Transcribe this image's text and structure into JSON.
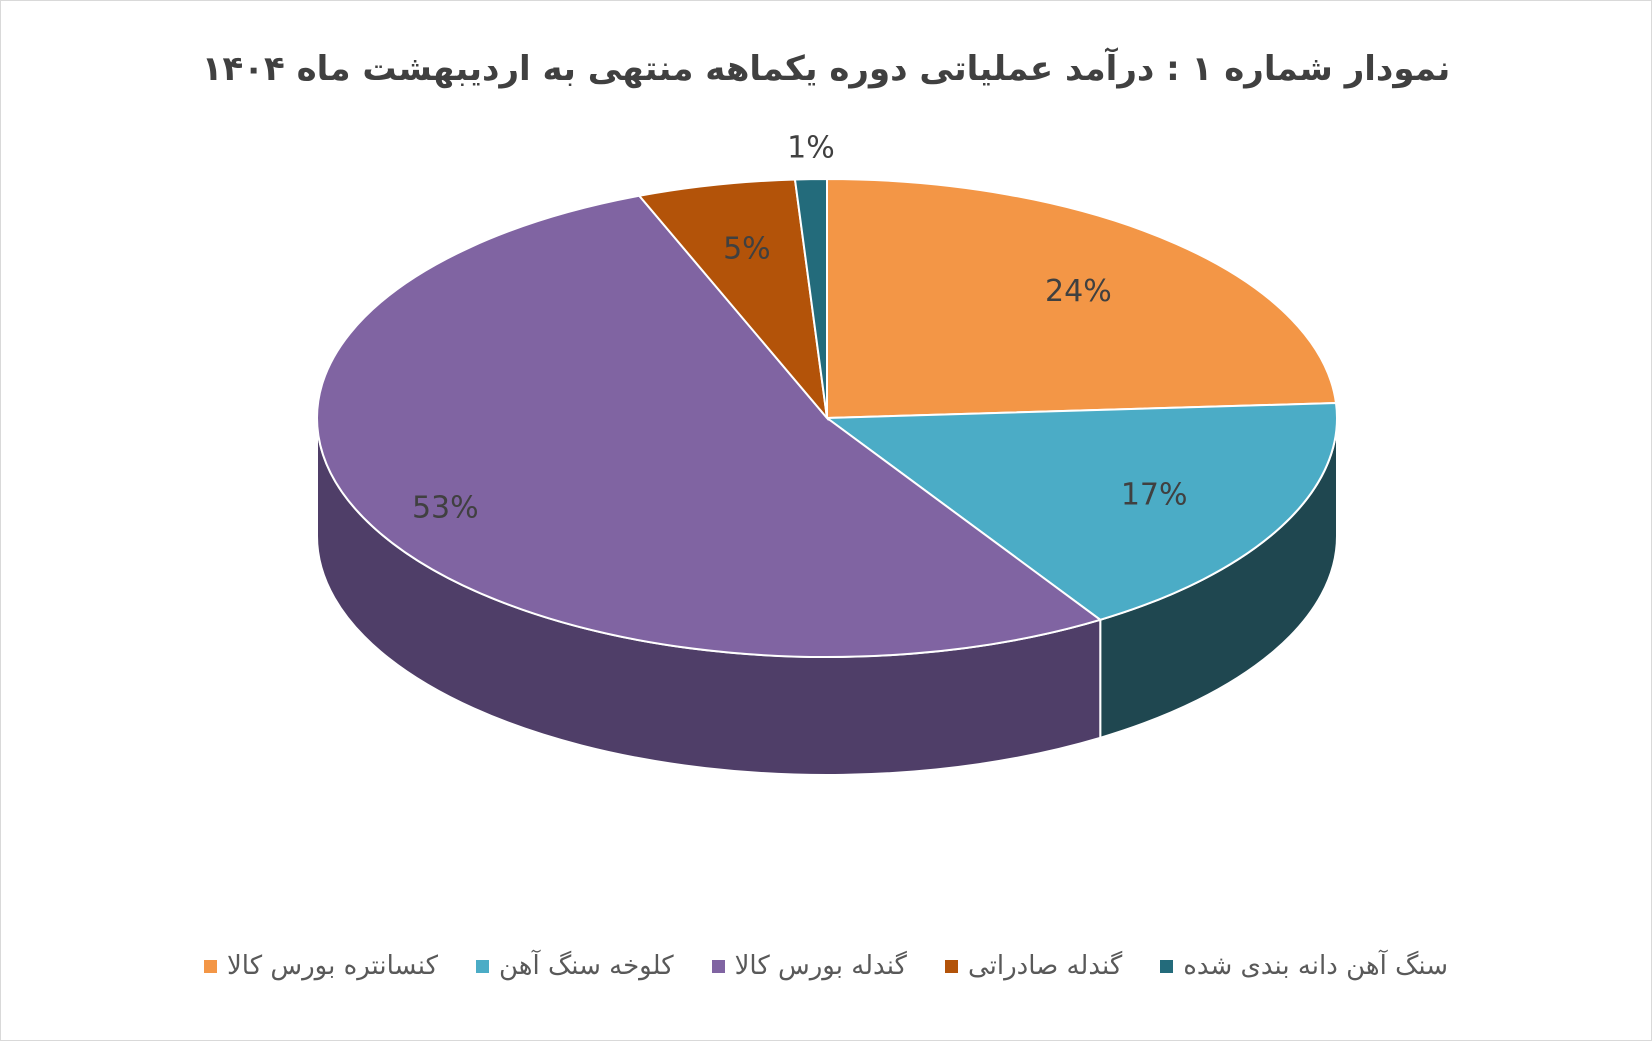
{
  "chart_data": {
    "type": "pie3d",
    "title": "نمودار شماره ۱ : درآمد عملیاتی دوره یکماهه منتهی به اردیبهشت ماه ۱۴۰۴",
    "categories": [
      "کنسانتره بورس کالا",
      "کلوخه سنگ آهن",
      "گندله بورس کالا",
      "گندله صادراتی",
      "سنگ آهن دانه بندی شده"
    ],
    "values": [
      24,
      17,
      53,
      5,
      1
    ],
    "value_labels": [
      "24%",
      "17%",
      "53%",
      "5%",
      "1%"
    ],
    "colors": [
      "#f39646",
      "#4bacc6",
      "#8064a2",
      "#b35309",
      "#236b7b"
    ],
    "side_colors": [
      "#a8622a",
      "#1f4750",
      "#4f3e68",
      "#7a3a08",
      "#173f48"
    ],
    "legend": "bottom"
  }
}
